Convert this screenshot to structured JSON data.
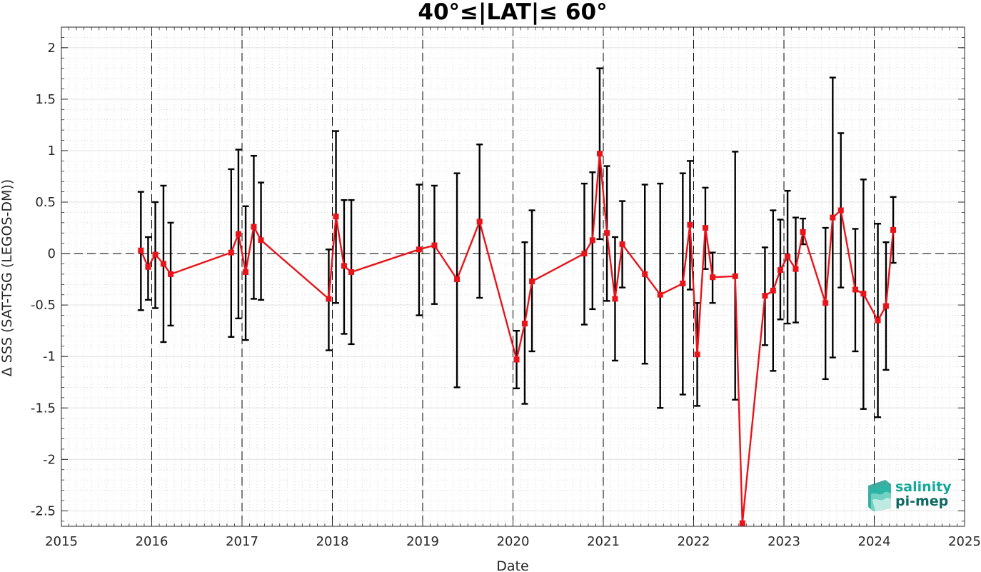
{
  "chart_data": {
    "type": "line",
    "title": "40°≤|LAT|≤ 60°",
    "xlabel": "Date",
    "ylabel": "Δ SSS (SAT-TSG (LEGOS-DM))",
    "xlim": [
      2015,
      2025
    ],
    "ylim": [
      -2.65,
      2.2
    ],
    "x_ticks": [
      2015,
      2016,
      2017,
      2018,
      2019,
      2020,
      2021,
      2022,
      2023,
      2024,
      2025
    ],
    "y_ticks": [
      -2.5,
      -2,
      -1.5,
      -1,
      -0.5,
      0,
      0.5,
      1,
      1.5,
      2
    ],
    "y_tick_labels": [
      "-2.5",
      "-2",
      "-1.5",
      "-1",
      "-0.5",
      "0",
      "0.5",
      "1",
      "1.5",
      "2"
    ],
    "grid": true,
    "minor_grid": true,
    "zero_reference_line": "dashed",
    "year_reference_lines": "dashed",
    "series": [
      {
        "color": "#e8141a",
        "marker": "square",
        "error_bar_color": "#000000",
        "points": [
          {
            "x": 2015.88,
            "y": 0.03,
            "lo": -0.55,
            "hi": 0.6
          },
          {
            "x": 2015.96,
            "y": -0.13,
            "lo": -0.45,
            "hi": 0.16
          },
          {
            "x": 2016.04,
            "y": -0.01,
            "lo": -0.53,
            "hi": 0.5
          },
          {
            "x": 2016.13,
            "y": -0.1,
            "lo": -0.86,
            "hi": 0.66
          },
          {
            "x": 2016.21,
            "y": -0.2,
            "lo": -0.7,
            "hi": 0.3
          },
          {
            "x": 2016.88,
            "y": 0.01,
            "lo": -0.81,
            "hi": 0.82
          },
          {
            "x": 2016.96,
            "y": 0.19,
            "lo": -0.63,
            "hi": 1.01
          },
          {
            "x": 2017.04,
            "y": -0.18,
            "lo": -0.84,
            "hi": 0.46
          },
          {
            "x": 2017.13,
            "y": 0.26,
            "lo": -0.44,
            "hi": 0.95
          },
          {
            "x": 2017.21,
            "y": 0.13,
            "lo": -0.45,
            "hi": 0.69
          },
          {
            "x": 2017.96,
            "y": -0.44,
            "lo": -0.94,
            "hi": 0.04
          },
          {
            "x": 2018.04,
            "y": 0.36,
            "lo": -0.48,
            "hi": 1.19
          },
          {
            "x": 2018.13,
            "y": -0.12,
            "lo": -0.78,
            "hi": 0.52
          },
          {
            "x": 2018.21,
            "y": -0.18,
            "lo": -0.88,
            "hi": 0.52
          },
          {
            "x": 2018.96,
            "y": 0.04,
            "lo": -0.6,
            "hi": 0.67
          },
          {
            "x": 2019.13,
            "y": 0.08,
            "lo": -0.49,
            "hi": 0.66
          },
          {
            "x": 2019.38,
            "y": -0.25,
            "lo": -1.3,
            "hi": 0.78
          },
          {
            "x": 2019.63,
            "y": 0.31,
            "lo": -0.43,
            "hi": 1.06
          },
          {
            "x": 2020.04,
            "y": -1.03,
            "lo": -1.31,
            "hi": -0.75
          },
          {
            "x": 2020.13,
            "y": -0.68,
            "lo": -1.46,
            "hi": 0.11
          },
          {
            "x": 2020.21,
            "y": -0.27,
            "lo": -0.95,
            "hi": 0.42
          },
          {
            "x": 2020.79,
            "y": 0.0,
            "lo": -0.69,
            "hi": 0.68
          },
          {
            "x": 2020.88,
            "y": 0.13,
            "lo": -0.54,
            "hi": 0.79
          },
          {
            "x": 2020.96,
            "y": 0.97,
            "lo": 0.14,
            "hi": 1.8
          },
          {
            "x": 2021.04,
            "y": 0.2,
            "lo": -0.46,
            "hi": 0.85
          },
          {
            "x": 2021.13,
            "y": -0.44,
            "lo": -1.04,
            "hi": 0.16
          },
          {
            "x": 2021.21,
            "y": 0.09,
            "lo": -0.33,
            "hi": 0.51
          },
          {
            "x": 2021.46,
            "y": -0.2,
            "lo": -1.07,
            "hi": 0.67
          },
          {
            "x": 2021.63,
            "y": -0.4,
            "lo": -1.5,
            "hi": 0.68
          },
          {
            "x": 2021.88,
            "y": -0.29,
            "lo": -1.37,
            "hi": 0.78
          },
          {
            "x": 2021.96,
            "y": 0.28,
            "lo": -0.35,
            "hi": 0.9
          },
          {
            "x": 2022.04,
            "y": -0.98,
            "lo": -1.48,
            "hi": -0.48
          },
          {
            "x": 2022.13,
            "y": 0.25,
            "lo": -0.15,
            "hi": 0.64
          },
          {
            "x": 2022.21,
            "y": -0.23,
            "lo": -0.48,
            "hi": 0.01
          },
          {
            "x": 2022.46,
            "y": -0.22,
            "lo": -1.42,
            "hi": 0.99
          },
          {
            "x": 2022.54,
            "y": -2.62,
            "lo": -2.62,
            "hi": -2.62
          },
          {
            "x": 2022.79,
            "y": -0.41,
            "lo": -0.89,
            "hi": 0.06
          },
          {
            "x": 2022.88,
            "y": -0.36,
            "lo": -1.14,
            "hi": 0.42
          },
          {
            "x": 2022.96,
            "y": -0.16,
            "lo": -0.64,
            "hi": 0.33
          },
          {
            "x": 2023.04,
            "y": -0.03,
            "lo": -0.68,
            "hi": 0.61
          },
          {
            "x": 2023.13,
            "y": -0.15,
            "lo": -0.67,
            "hi": 0.35
          },
          {
            "x": 2023.21,
            "y": 0.21,
            "lo": 0.09,
            "hi": 0.34
          },
          {
            "x": 2023.46,
            "y": -0.48,
            "lo": -1.22,
            "hi": 0.25
          },
          {
            "x": 2023.54,
            "y": 0.35,
            "lo": -1.01,
            "hi": 1.71
          },
          {
            "x": 2023.63,
            "y": 0.42,
            "lo": -0.33,
            "hi": 1.17
          },
          {
            "x": 2023.79,
            "y": -0.35,
            "lo": -0.95,
            "hi": 0.24
          },
          {
            "x": 2023.88,
            "y": -0.39,
            "lo": -1.51,
            "hi": 0.72
          },
          {
            "x": 2024.04,
            "y": -0.65,
            "lo": -1.59,
            "hi": 0.29
          },
          {
            "x": 2024.13,
            "y": -0.51,
            "lo": -1.13,
            "hi": 0.11
          },
          {
            "x": 2024.21,
            "y": 0.23,
            "lo": -0.09,
            "hi": 0.55
          }
        ]
      }
    ]
  },
  "logo": {
    "line1": "salinity",
    "line2": "pi-mep",
    "color_line1": "#16a89a",
    "color_line2": "#0d6b63"
  },
  "colors": {
    "series": "#e8141a",
    "error_bars": "#000000",
    "grid_major": "#e2e2e2",
    "grid_minor": "#d0d0d0",
    "axis": "#262626"
  }
}
